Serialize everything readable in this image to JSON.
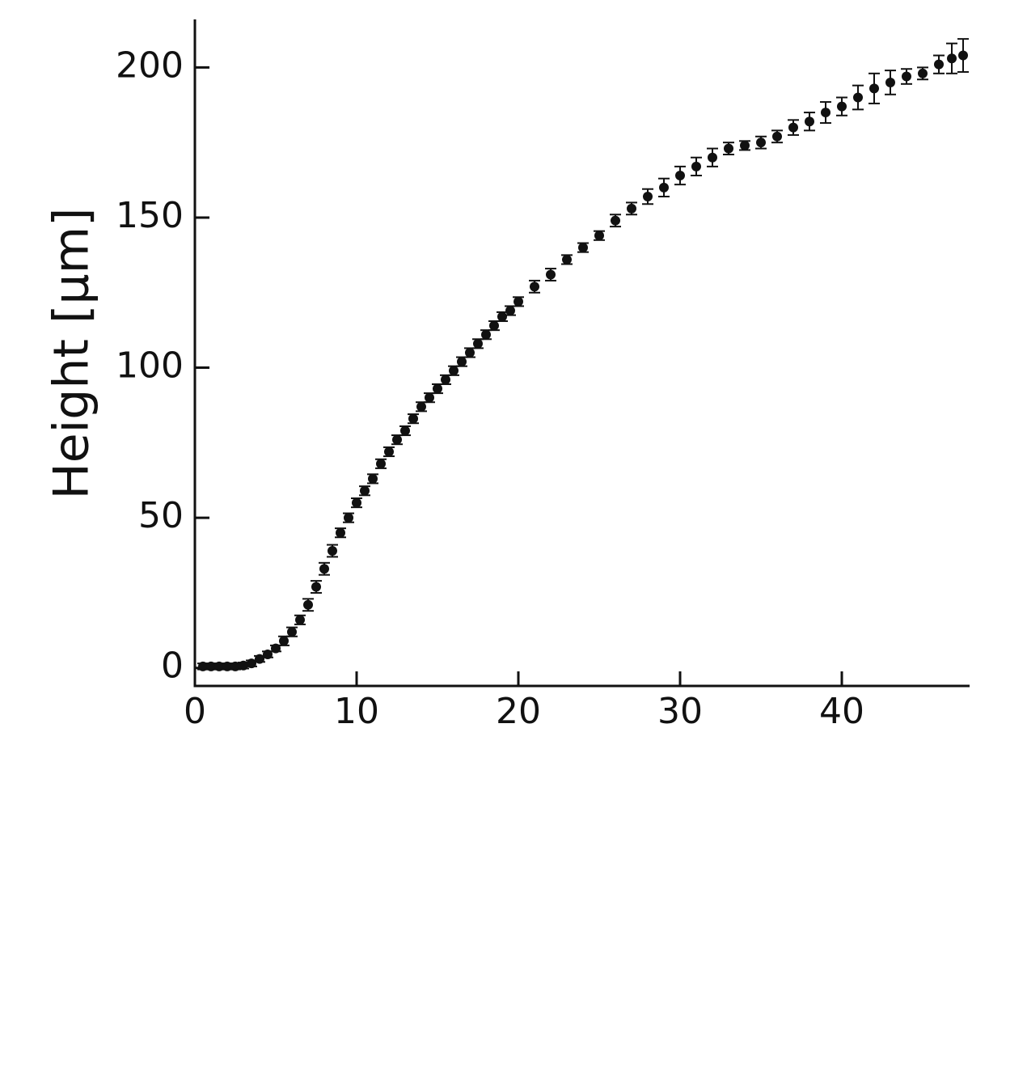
{
  "chart_data": {
    "type": "scatter",
    "y_label": "Height [μm]",
    "color": "#111111",
    "x": [
      0.5,
      1,
      1.5,
      2,
      2.5,
      3,
      3.5,
      4,
      4.5,
      5,
      5.5,
      6,
      6.5,
      7,
      7.5,
      8,
      8.5,
      9,
      9.5,
      10,
      10.5,
      11,
      11.5,
      12,
      12.5,
      13,
      13.5,
      14,
      14.5,
      15,
      15.5,
      16,
      16.5,
      17,
      17.5,
      18,
      18.5,
      19,
      19.5,
      20,
      21,
      22,
      23,
      24,
      25,
      26,
      27,
      28,
      29,
      30,
      31,
      32,
      33,
      34,
      35,
      36,
      37,
      38,
      39,
      40,
      41,
      42,
      43,
      44,
      45,
      46,
      46.8,
      47.5
    ],
    "values": [
      0.5,
      0.5,
      0.5,
      0.5,
      0.5,
      0.8,
      1.5,
      3,
      4.5,
      6.5,
      9,
      12,
      16,
      21,
      27,
      33,
      39,
      45,
      50,
      55,
      59,
      63,
      68,
      72,
      76,
      79,
      83,
      87,
      90,
      93,
      96,
      99,
      102,
      105,
      108,
      111,
      114,
      117,
      119,
      122,
      127,
      131,
      136,
      140,
      144,
      149,
      153,
      157,
      160,
      164,
      167,
      170,
      173,
      174,
      175,
      177,
      180,
      182,
      185,
      187,
      190,
      193,
      195,
      197,
      198,
      201,
      203,
      204
    ],
    "errors": [
      1,
      1,
      1,
      1,
      1,
      1,
      1,
      1,
      1,
      1,
      1.5,
      1.5,
      1.5,
      2,
      2,
      2,
      2,
      1.5,
      1.5,
      1.5,
      1.5,
      1.5,
      1.5,
      1.5,
      1.5,
      1.5,
      1.5,
      1.5,
      1.5,
      1.5,
      1.5,
      1.5,
      1.5,
      1.5,
      1.5,
      1.5,
      1.5,
      1.5,
      1.5,
      1.5,
      2,
      2,
      1.5,
      1.5,
      1.5,
      2,
      2,
      2.5,
      3,
      3,
      3,
      3,
      2,
      1.5,
      2,
      2,
      2.5,
      3,
      3.5,
      3,
      4,
      5,
      4,
      2.5,
      2,
      3,
      5,
      5.5
    ],
    "xlim": [
      0,
      47.9
    ],
    "ylim": [
      -6,
      216
    ],
    "xticks": [
      0,
      10,
      20,
      30,
      40
    ],
    "yticks": [
      0,
      50,
      100,
      150,
      200
    ]
  }
}
